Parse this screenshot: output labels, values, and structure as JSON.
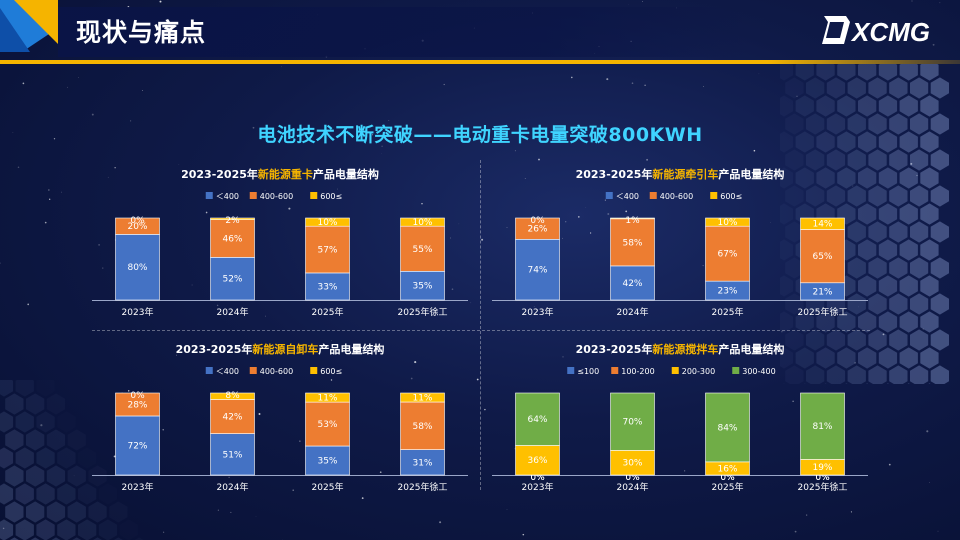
{
  "header": {
    "title": "现状与痛点",
    "logo_text": "XCMG"
  },
  "main_title": "电池技术不断突破——电动重卡电量突破800KWH",
  "colors": {
    "blue": "#4472c4",
    "orange": "#ed7d31",
    "yellow": "#ffc000",
    "green": "#70ad47",
    "title_cyan": "#3fd4ff",
    "gold": "#f5b400"
  },
  "chart_data": [
    {
      "type": "bar",
      "stacked": true,
      "title_parts": [
        "2023-2025年",
        "新能源重卡",
        "产品电量结构"
      ],
      "categories": [
        "2023年",
        "2024年",
        "2025年",
        "2025年徐工"
      ],
      "series": [
        {
          "name": "＜400",
          "color": "#4472c4",
          "values": [
            80,
            52,
            33,
            35
          ]
        },
        {
          "name": "400-600",
          "color": "#ed7d31",
          "values": [
            20,
            46,
            57,
            55
          ]
        },
        {
          "name": "600≤",
          "color": "#ffc000",
          "values": [
            0,
            2,
            10,
            10
          ]
        }
      ],
      "legend": "top",
      "ylim": [
        0,
        100
      ]
    },
    {
      "type": "bar",
      "stacked": true,
      "title_parts": [
        "2023-2025年",
        "新能源牵引车",
        "产品电量结构"
      ],
      "categories": [
        "2023年",
        "2024年",
        "2025年",
        "2025年徐工"
      ],
      "series": [
        {
          "name": "＜400",
          "color": "#4472c4",
          "values": [
            74,
            42,
            23,
            21
          ]
        },
        {
          "name": "400-600",
          "color": "#ed7d31",
          "values": [
            26,
            58,
            67,
            65
          ]
        },
        {
          "name": "600≤",
          "color": "#ffc000",
          "values": [
            0,
            1,
            10,
            14
          ]
        }
      ],
      "legend": "top",
      "ylim": [
        0,
        100
      ]
    },
    {
      "type": "bar",
      "stacked": true,
      "title_parts": [
        "2023-2025年",
        "新能源自卸车",
        "产品电量结构"
      ],
      "categories": [
        "2023年",
        "2024年",
        "2025年",
        "2025年徐工"
      ],
      "series": [
        {
          "name": "＜400",
          "color": "#4472c4",
          "values": [
            72,
            51,
            35,
            31
          ]
        },
        {
          "name": "400-600",
          "color": "#ed7d31",
          "values": [
            28,
            42,
            53,
            58
          ]
        },
        {
          "name": "600≤",
          "color": "#ffc000",
          "values": [
            0,
            8,
            11,
            11
          ]
        }
      ],
      "legend": "top",
      "ylim": [
        0,
        100
      ]
    },
    {
      "type": "bar",
      "stacked": true,
      "title_parts": [
        "2023-2025年",
        "新能源搅拌车",
        "产品电量结构"
      ],
      "categories": [
        "2023年",
        "2024年",
        "2025年",
        "2025年徐工"
      ],
      "series": [
        {
          "name": "≤100",
          "color": "#4472c4",
          "values": [
            0,
            0,
            0,
            0
          ]
        },
        {
          "name": "100-200",
          "color": "#ed7d31",
          "values": [
            0,
            0,
            0,
            0
          ]
        },
        {
          "name": "200-300",
          "color": "#ffc000",
          "values": [
            36,
            30,
            16,
            19
          ]
        },
        {
          "name": "300-400",
          "color": "#70ad47",
          "values": [
            64,
            70,
            84,
            81
          ]
        }
      ],
      "legend": "top",
      "ylim": [
        0,
        100
      ]
    }
  ]
}
